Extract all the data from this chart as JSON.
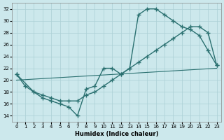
{
  "xlabel": "Humidex (Indice chaleur)",
  "background_color": "#cce8ec",
  "grid_color": "#aacfd4",
  "line_color": "#2a7070",
  "xlim": [
    -0.5,
    23.5
  ],
  "ylim": [
    13,
    33
  ],
  "xticks": [
    0,
    1,
    2,
    3,
    4,
    5,
    6,
    7,
    8,
    9,
    10,
    11,
    12,
    13,
    14,
    15,
    16,
    17,
    18,
    19,
    20,
    21,
    22,
    23
  ],
  "yticks": [
    14,
    16,
    18,
    20,
    22,
    24,
    26,
    28,
    30,
    32
  ],
  "curve1_x": [
    0,
    1,
    2,
    3,
    4,
    5,
    6,
    7,
    8,
    9,
    10,
    11,
    12,
    13,
    14,
    15,
    16,
    17,
    18,
    19,
    20,
    21,
    22,
    23
  ],
  "curve1_y": [
    21,
    19,
    18,
    17,
    16.5,
    16,
    15.5,
    14,
    18.5,
    19,
    22,
    22,
    21,
    22,
    31,
    32,
    32,
    31,
    30,
    29,
    28.5,
    27.5,
    25,
    22.5
  ],
  "curve2_x": [
    0,
    2,
    3,
    4,
    5,
    6,
    7,
    8,
    9,
    10,
    11,
    12,
    13,
    14,
    15,
    16,
    17,
    18,
    19,
    20,
    21,
    22,
    23
  ],
  "curve2_y": [
    21,
    18,
    17.5,
    17,
    16.5,
    16.5,
    16.5,
    17.5,
    18,
    19,
    20,
    21,
    22,
    23,
    24,
    25,
    26,
    27,
    28,
    29,
    29,
    28,
    22.5
  ],
  "curve3_x": [
    0,
    23
  ],
  "curve3_y": [
    20,
    22
  ]
}
